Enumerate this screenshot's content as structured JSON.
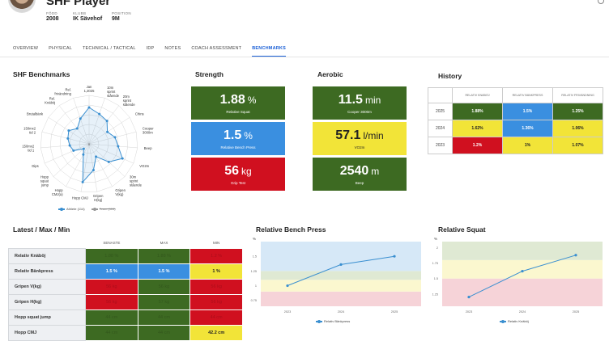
{
  "header": {
    "player_name": "SHF Player",
    "meta": [
      {
        "label": "FÖDD",
        "value": "2008"
      },
      {
        "label": "KLUBB",
        "value": "IK Sävehof"
      },
      {
        "label": "POSITION",
        "value": "9M"
      }
    ]
  },
  "tabs": [
    "OVERVIEW",
    "PHYSICAL",
    "TECHNICAL / TACTICAL",
    "IDP",
    "NOTES",
    "COACH ASSESSMENT",
    "BENCHMARKS"
  ],
  "active_tab": "BENCHMARKS",
  "benchmarks": {
    "title": "SHF Benchmarks",
    "center_value": "0",
    "labels": [
      "Jan 1,2025",
      "10m sprint stående",
      "20m sprint stående",
      "Chins",
      "Cooper 3000m",
      "Beep",
      "VO2m",
      "30m sprint stående",
      "Gripen V(kg)",
      "Gripen H(kg)",
      "Hopp CMJ",
      "Hopp CMJ(a)",
      "Hopp squat jump",
      "Dips",
      "150mx2 tid 1",
      "150mx2 tid 2",
      "Brutalbänk",
      "Rel. Knäböj",
      "Rel. frivändning"
    ],
    "legend": {
      "athlete": "Athlete (114)",
      "team": "Team (115)"
    },
    "chart_data": {
      "type": "radar",
      "series": [
        {
          "name": "Athlete (114)",
          "values": [
            0.75,
            0.65,
            0.6,
            0.45,
            0.55,
            0.6,
            0.75,
            0.55,
            0.3,
            0.55,
            0.8,
            0.25,
            0.15,
            0.35,
            0.4,
            0.45,
            0.5,
            0.4,
            0.55
          ]
        }
      ]
    }
  },
  "strength": {
    "title": "Strength",
    "tiles": [
      {
        "value": "1.88",
        "unit": "%",
        "label": "Relative Squat",
        "color": "green"
      },
      {
        "value": "1.5",
        "unit": "%",
        "label": "Relative Bench Press",
        "color": "blue"
      },
      {
        "value": "56",
        "unit": "kg",
        "label": "Grip Test",
        "color": "red"
      }
    ]
  },
  "aerobic": {
    "title": "Aerobic",
    "tiles": [
      {
        "value": "11.5",
        "unit": "min",
        "label": "Cooper 3000m",
        "color": "green"
      },
      {
        "value": "57.1",
        "unit": "l/min",
        "label": "VO2m",
        "color": "yellow"
      },
      {
        "value": "2540",
        "unit": "m",
        "label": "Beep",
        "color": "green"
      }
    ]
  },
  "history": {
    "title": "History",
    "columns": [
      "RELATIV KNÄBÖJ",
      "RELATIV BÄNKPRESS",
      "RELATIV FRIVÄNDNING"
    ],
    "rows": [
      {
        "year": "2025",
        "cells": [
          {
            "v": "1.88%",
            "c": "green"
          },
          {
            "v": "1.5%",
            "c": "blue"
          },
          {
            "v": "1.25%",
            "c": "green"
          }
        ]
      },
      {
        "year": "2024",
        "cells": [
          {
            "v": "1.62%",
            "c": "yellow"
          },
          {
            "v": "1.36%",
            "c": "blue"
          },
          {
            "v": "1.06%",
            "c": "yellow"
          }
        ]
      },
      {
        "year": "2023",
        "cells": [
          {
            "v": "1.2%",
            "c": "red"
          },
          {
            "v": "1%",
            "c": "yellow"
          },
          {
            "v": "1.07%",
            "c": "yellow"
          }
        ]
      }
    ]
  },
  "latest": {
    "title": "Latest / Max / Min",
    "columns": [
      "SENASTE",
      "MAX",
      "MIN"
    ],
    "rows": [
      {
        "name": "Relativ Knäböj",
        "cells": [
          {
            "v": "1.88 %",
            "c": "green",
            "f": true
          },
          {
            "v": "1.88 %",
            "c": "green",
            "f": true
          },
          {
            "v": "1.2 %",
            "c": "red",
            "f": true
          }
        ]
      },
      {
        "name": "Relativ Bänkpress",
        "cells": [
          {
            "v": "1.5 %",
            "c": "blue",
            "f": false
          },
          {
            "v": "1.5 %",
            "c": "blue",
            "f": false
          },
          {
            "v": "1 %",
            "c": "yellow",
            "f": false
          }
        ]
      },
      {
        "name": "Gripen V(kg)",
        "cells": [
          {
            "v": "56 kg",
            "c": "red",
            "f": true
          },
          {
            "v": "56 kg",
            "c": "green",
            "f": true
          },
          {
            "v": "56 kg",
            "c": "red",
            "f": true
          }
        ]
      },
      {
        "name": "Gripen H(kg)",
        "cells": [
          {
            "v": "56 kg",
            "c": "red",
            "f": true
          },
          {
            "v": "57 kg",
            "c": "green",
            "f": true
          },
          {
            "v": "56 kg",
            "c": "red",
            "f": true
          }
        ]
      },
      {
        "name": "Hopp squat jump",
        "cells": [
          {
            "v": "44 cm",
            "c": "green",
            "f": true
          },
          {
            "v": "44 cm",
            "c": "green",
            "f": true
          },
          {
            "v": "44 cm",
            "c": "red",
            "f": true
          }
        ]
      },
      {
        "name": "Hopp CMJ",
        "cells": [
          {
            "v": "44 cm",
            "c": "green",
            "f": true
          },
          {
            "v": "44 cm",
            "c": "green",
            "f": true
          },
          {
            "v": "42.2 cm",
            "c": "yellow",
            "f": false
          }
        ]
      }
    ]
  },
  "bench_chart": {
    "title": "Relative Bench Press",
    "legend": "Relativ Bänkpress",
    "chart_data": {
      "type": "line",
      "x": [
        "2023",
        "2024",
        "2025"
      ],
      "series": [
        {
          "name": "Relativ Bänkpress",
          "values": [
            1.0,
            1.36,
            1.5
          ]
        }
      ],
      "ylabel": "%",
      "yticks": [
        "0.75",
        "1",
        "1.25",
        "1.5"
      ],
      "ylim": [
        0.65,
        1.75
      ],
      "bands": [
        {
          "from": 0.65,
          "to": 0.9,
          "color": "#f6d3d8"
        },
        {
          "from": 0.9,
          "to": 1.1,
          "color": "#fbf7cf"
        },
        {
          "from": 1.1,
          "to": 1.25,
          "color": "#dfe9d3"
        },
        {
          "from": 1.25,
          "to": 1.75,
          "color": "#d6e8f7"
        }
      ]
    }
  },
  "squat_chart": {
    "title": "Relative Squat",
    "legend": "Relativ Knäböj",
    "chart_data": {
      "type": "line",
      "x": [
        "2023",
        "2024",
        "2025"
      ],
      "series": [
        {
          "name": "Relativ Knäböj",
          "values": [
            1.2,
            1.62,
            1.88
          ]
        }
      ],
      "ylabel": "%",
      "yticks": [
        "1.25",
        "1.5",
        "1.75",
        "2"
      ],
      "ylim": [
        1.05,
        2.1
      ],
      "bands": [
        {
          "from": 1.05,
          "to": 1.5,
          "color": "#f6d3d8"
        },
        {
          "from": 1.5,
          "to": 1.8,
          "color": "#fbf7cf"
        },
        {
          "from": 1.8,
          "to": 2.1,
          "color": "#dfe9d3"
        }
      ]
    }
  },
  "colors": {
    "green": "#3d6a22",
    "blue": "#3a8fe0",
    "red": "#d0101f",
    "yellow": "#f2e438",
    "line": "#3a8fd0"
  }
}
